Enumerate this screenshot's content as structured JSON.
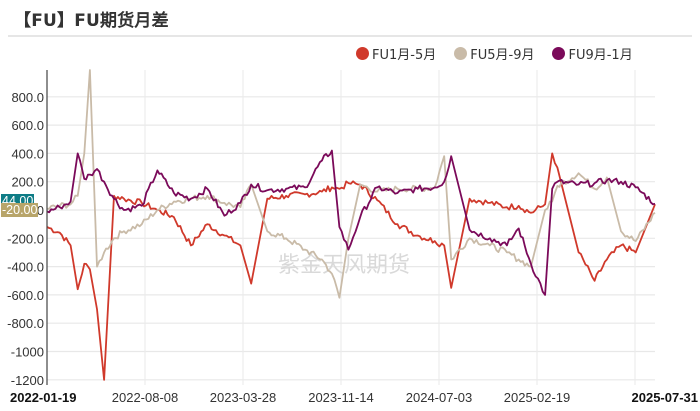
{
  "header": {
    "title": "【FU】FU期货月差"
  },
  "legend": [
    {
      "label": "FU1月-5月",
      "color": "#d0392b"
    },
    {
      "label": "FU5月-9月",
      "color": "#c9bba8"
    },
    {
      "label": "FU9月-1月",
      "color": "#7b0a5a"
    }
  ],
  "badges": {
    "last_a": {
      "text": "44.00",
      "bg": "#0e7c86"
    },
    "last_b": {
      "text": "-20.00",
      "bg": "#b8a56a"
    }
  },
  "watermark": "紫金天风期货",
  "chart_data": {
    "type": "line",
    "title": "【FU】FU期货月差",
    "xlabel": "",
    "ylabel": "",
    "ylim": [
      -1200,
      1000
    ],
    "yticks": [
      "800.0",
      "600.0",
      "400.0",
      "200.0",
      "0",
      "-200.0",
      "-400.0",
      "-600.0",
      "-800.0",
      "-1000",
      "-1200"
    ],
    "xticks": [
      "2022-01-19",
      "2022-08-08",
      "2023-03-28",
      "2023-11-14",
      "2024-07-03",
      "2025-02-19",
      "2025-07-31"
    ],
    "x_range": [
      "2022-01-19",
      "2025-07-31"
    ],
    "grid": true,
    "legend_position": "top-right",
    "x": [
      "2022-01-19",
      "2022-02-15",
      "2022-03-10",
      "2022-03-25",
      "2022-04-08",
      "2022-04-20",
      "2022-05-05",
      "2022-05-20",
      "2022-06-10",
      "2022-07-01",
      "2022-08-08",
      "2022-09-10",
      "2022-10-15",
      "2022-11-20",
      "2022-12-25",
      "2023-01-30",
      "2023-03-05",
      "2023-03-28",
      "2023-05-01",
      "2023-06-10",
      "2023-07-20",
      "2023-08-25",
      "2023-09-15",
      "2023-10-01",
      "2023-10-20",
      "2023-11-14",
      "2023-12-20",
      "2024-02-01",
      "2024-03-15",
      "2024-04-20",
      "2024-05-10",
      "2024-05-25",
      "2024-07-03",
      "2024-08-15",
      "2024-09-20",
      "2024-10-15",
      "2024-11-10",
      "2024-12-10",
      "2024-12-25",
      "2025-01-05",
      "2025-02-19",
      "2025-03-25",
      "2025-04-20",
      "2025-05-20",
      "2025-06-20",
      "2025-07-31"
    ],
    "series": [
      {
        "name": "FU1月-5月",
        "color": "#d0392b",
        "values": [
          -120,
          -160,
          -250,
          -560,
          -380,
          -420,
          -700,
          -1200,
          100,
          80,
          50,
          0,
          -50,
          -250,
          -100,
          -180,
          -250,
          -520,
          80,
          100,
          110,
          130,
          160,
          150,
          190,
          180,
          70,
          -100,
          -180,
          -220,
          -250,
          -550,
          80,
          50,
          20,
          30,
          -20,
          40,
          400,
          300,
          -300,
          -500,
          -350,
          -250,
          -300,
          40
        ]
      },
      {
        "name": "FU5月-9月",
        "color": "#c9bba8",
        "values": [
          10,
          30,
          40,
          100,
          400,
          1000,
          -400,
          -300,
          -200,
          -150,
          -100,
          0,
          60,
          80,
          100,
          50,
          20,
          180,
          -150,
          -200,
          -280,
          -350,
          -450,
          -620,
          -200,
          180,
          130,
          150,
          150,
          160,
          380,
          -350,
          -200,
          -250,
          -300,
          -350,
          -400,
          0,
          60,
          170,
          260,
          150,
          230,
          -150,
          -220,
          -20
        ]
      },
      {
        "name": "FU9月-1月",
        "color": "#7b0a5a",
        "values": [
          -10,
          20,
          60,
          400,
          220,
          250,
          290,
          200,
          80,
          0,
          30,
          280,
          120,
          80,
          150,
          -40,
          50,
          180,
          140,
          150,
          160,
          350,
          420,
          -120,
          -280,
          -50,
          160,
          120,
          150,
          160,
          200,
          380,
          -140,
          -200,
          -250,
          -130,
          -380,
          -600,
          150,
          200,
          180,
          190,
          210,
          200,
          160,
          44
        ]
      }
    ],
    "last_value_labels": [
      "44.00",
      "-20.00"
    ]
  }
}
